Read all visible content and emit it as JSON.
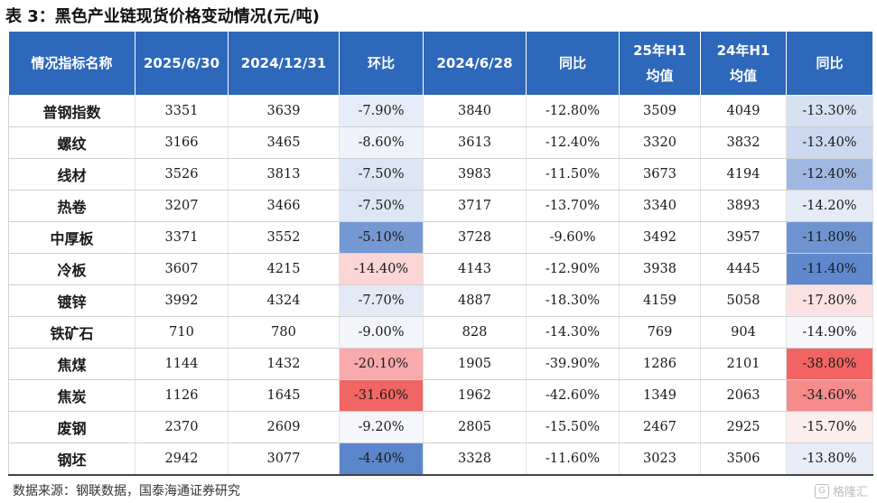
{
  "title": "表 3：黑色产业链现货价格变动情况(元/吨)",
  "headers": [
    "情况指标名称",
    "2025/6/30",
    "2024/12/31",
    "环比",
    "2024/6/28",
    "同比",
    "25年H1\n均值",
    "24年H1\n均值",
    "同比"
  ],
  "rows": [
    {
      "name": "普钢指数",
      "cells": [
        "3351",
        "3639",
        "-7.90%",
        "3840",
        "-12.80%",
        "3509",
        "4049",
        "-13.30%"
      ]
    },
    {
      "name": "螺纹",
      "cells": [
        "3166",
        "3465",
        "-8.60%",
        "3613",
        "-12.40%",
        "3320",
        "3832",
        "-13.40%"
      ]
    },
    {
      "name": "线材",
      "cells": [
        "3526",
        "3813",
        "-7.50%",
        "3983",
        "-11.50%",
        "3673",
        "4194",
        "-12.40%"
      ]
    },
    {
      "name": "热卷",
      "cells": [
        "3207",
        "3466",
        "-7.50%",
        "3717",
        "-13.70%",
        "3340",
        "3893",
        "-14.20%"
      ]
    },
    {
      "name": "中厚板",
      "cells": [
        "3371",
        "3552",
        "-5.10%",
        "3728",
        "-9.60%",
        "3492",
        "3957",
        "-11.80%"
      ]
    },
    {
      "name": "冷板",
      "cells": [
        "3607",
        "4215",
        "-14.40%",
        "4143",
        "-12.90%",
        "3938",
        "4445",
        "-11.40%"
      ]
    },
    {
      "name": "镀锌",
      "cells": [
        "3992",
        "4324",
        "-7.70%",
        "4887",
        "-18.30%",
        "4159",
        "5058",
        "-17.80%"
      ]
    },
    {
      "name": "铁矿石",
      "cells": [
        "710",
        "780",
        "-9.00%",
        "828",
        "-14.30%",
        "769",
        "904",
        "-14.90%"
      ]
    },
    {
      "name": "焦煤",
      "cells": [
        "1144",
        "1432",
        "-20.10%",
        "1905",
        "-39.90%",
        "1286",
        "2101",
        "-38.80%"
      ]
    },
    {
      "name": "焦炭",
      "cells": [
        "1126",
        "1645",
        "-31.60%",
        "1962",
        "-42.60%",
        "1349",
        "2063",
        "-34.60%"
      ]
    },
    {
      "name": "废钢",
      "cells": [
        "2370",
        "2609",
        "-9.20%",
        "2805",
        "-15.50%",
        "2467",
        "2925",
        "-15.70%"
      ]
    },
    {
      "name": "钢坯",
      "cells": [
        "2942",
        "3077",
        "-4.40%",
        "3328",
        "-11.60%",
        "3023",
        "3506",
        "-13.80%"
      ]
    }
  ],
  "heat_colors": {
    "mom": [
      "#e6edf8",
      "#eef2fa",
      "#dde6f4",
      "#dde6f4",
      "#7598d2",
      "#fcd5d5",
      "#e3eaf6",
      "#f3f5fb",
      "#f9aaaa",
      "#f26565",
      "#f4f6fb",
      "#5c86cb"
    ],
    "h1_yoy": [
      "#d6e1f2",
      "#cbd8ee",
      "#9fb8e2",
      "#e4eaf6",
      "#6f93d0",
      "#5f89cc",
      "#fbe2e2",
      "#f6f7fb",
      "#f26464",
      "#f58b8b",
      "#fdeeee",
      "#e7ecf7"
    ]
  },
  "footer": {
    "source": "数据来源：钢联数据，国泰海通证券研究",
    "watermark": "格隆汇",
    "watermark_icon": "G"
  }
}
